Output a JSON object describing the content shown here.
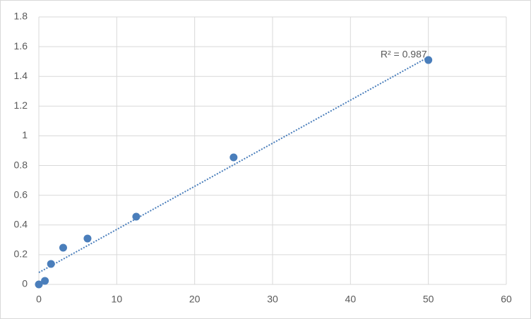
{
  "chart_data": {
    "type": "scatter",
    "series": [
      {
        "color": "#4a7ebb",
        "x": [
          0,
          0.78,
          1.56,
          3.125,
          6.25,
          12.5,
          25,
          50
        ],
        "values": [
          0,
          0.024,
          0.138,
          0.247,
          0.309,
          0.456,
          0.855,
          1.51
        ]
      }
    ],
    "trendline": {
      "style": "dotted",
      "x": [
        0,
        50
      ],
      "values": [
        0.08,
        1.53
      ],
      "label": "R² = 0.987"
    },
    "xlim": [
      0,
      60
    ],
    "xticks": [
      0,
      10,
      20,
      30,
      40,
      50,
      60
    ],
    "ylim": [
      0,
      1.8
    ],
    "yticks": [
      0,
      0.2,
      0.4,
      0.6,
      0.8,
      1,
      1.2,
      1.4,
      1.6,
      1.8
    ],
    "grid": true
  }
}
